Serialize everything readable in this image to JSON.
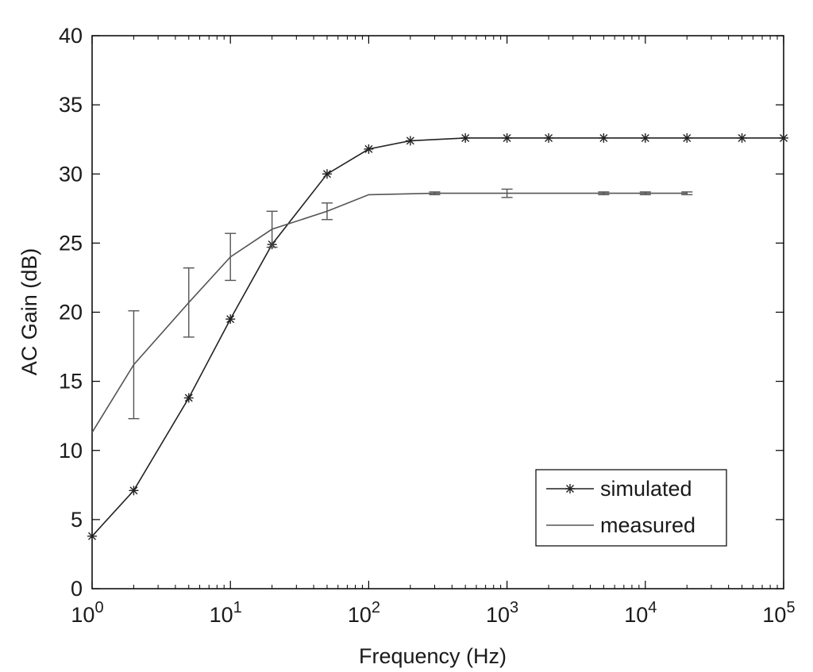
{
  "chart_data": {
    "type": "line",
    "title": "",
    "xlabel": "Frequency (Hz)",
    "ylabel": "AC Gain (dB)",
    "x_scale": "log",
    "xlim": [
      1,
      100000
    ],
    "ylim": [
      0,
      40
    ],
    "grid": false,
    "legend_position": "bottom-right",
    "x_ticks": [
      {
        "value": 1,
        "base": "10",
        "exp": "0"
      },
      {
        "value": 10,
        "base": "10",
        "exp": "1"
      },
      {
        "value": 100,
        "base": "10",
        "exp": "2"
      },
      {
        "value": 1000,
        "base": "10",
        "exp": "3"
      },
      {
        "value": 10000,
        "base": "10",
        "exp": "4"
      },
      {
        "value": 100000,
        "base": "10",
        "exp": "5"
      }
    ],
    "y_ticks": [
      0,
      5,
      10,
      15,
      20,
      25,
      30,
      35,
      40
    ],
    "series": [
      {
        "name": "simulated",
        "color": "#222222",
        "marker": "star",
        "x": [
          1,
          2,
          5,
          10,
          20,
          50,
          100,
          200,
          500,
          1000,
          2000,
          5000,
          10000,
          20000,
          50000,
          100000
        ],
        "y": [
          3.8,
          7.1,
          13.8,
          19.5,
          24.9,
          30.0,
          31.8,
          32.4,
          32.6,
          32.6,
          32.6,
          32.6,
          32.6,
          32.6,
          32.6,
          32.6
        ]
      },
      {
        "name": "measured",
        "color": "#555555",
        "marker": "none",
        "x": [
          1,
          2,
          5,
          10,
          20,
          50,
          100,
          300,
          1000,
          5000,
          10000,
          20000
        ],
        "y": [
          11.3,
          16.2,
          20.7,
          24.0,
          26.0,
          27.3,
          28.5,
          28.6,
          28.6,
          28.6,
          28.6,
          28.6
        ],
        "error": [
          0,
          3.9,
          2.5,
          1.7,
          1.3,
          0.6,
          0,
          0.1,
          0.3,
          0.1,
          0.1,
          0.1
        ]
      }
    ]
  }
}
